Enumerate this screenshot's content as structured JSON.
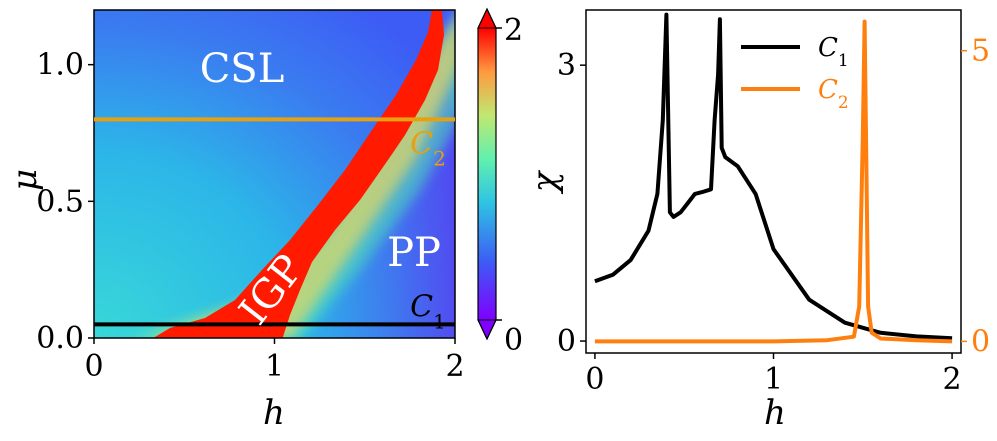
{
  "colors": {
    "c1": "#000000",
    "c2": "#ff7f0e",
    "c2_line_on_map": "#e6a010",
    "chi_c2_axis": "#ff7f0e"
  },
  "chart_data": [
    {
      "type": "heatmap",
      "title": "",
      "xlabel": "h",
      "ylabel": "μ",
      "xlim": [
        0,
        2
      ],
      "ylim": [
        0,
        1.2
      ],
      "xticks": [
        "0",
        "1",
        "2"
      ],
      "yticks": [
        "0.0",
        "0.5",
        "1.0"
      ],
      "colormap": "rainbow",
      "colorbar": {
        "min": 0,
        "max": 2,
        "ticks": [
          "0",
          "2"
        ],
        "extend": "both"
      },
      "regions": [
        {
          "label": "CSL",
          "h": 0.82,
          "mu": 1.0
        },
        {
          "label": "PP",
          "h": 1.8,
          "mu": 0.35
        },
        {
          "label": "IGP",
          "h": 1.0,
          "mu": 0.22,
          "rotation_deg": -52
        }
      ],
      "lines": [
        {
          "name": "C_1",
          "mu": 0.05,
          "h_range": [
            0,
            2
          ]
        },
        {
          "name": "C_2",
          "mu": 0.8,
          "h_range": [
            0,
            2
          ]
        }
      ],
      "boundary_ridge": [
        [
          0.33,
          0.0
        ],
        [
          0.6,
          0.1
        ],
        [
          0.9,
          0.3
        ],
        [
          1.2,
          0.5
        ],
        [
          1.45,
          0.7
        ],
        [
          1.7,
          0.9
        ],
        [
          1.95,
          1.2
        ]
      ]
    },
    {
      "type": "line",
      "title": "",
      "xlabel": "h",
      "ylabel": "χ",
      "xlim": [
        -0.05,
        2.05
      ],
      "xticks": [
        "0",
        "1",
        "2"
      ],
      "yticks_left": [
        "0",
        "3"
      ],
      "ylim_left": [
        0,
        3.6
      ],
      "yticks_right": [
        "0",
        "5"
      ],
      "ylim_right": [
        -0.2,
        5.7
      ],
      "legend": {
        "position": "top-right",
        "entries": [
          "C_1",
          "C_2"
        ]
      },
      "series": [
        {
          "name": "C_1",
          "axis": "left",
          "x": [
            0,
            0.1,
            0.2,
            0.3,
            0.35,
            0.38,
            0.4,
            0.42,
            0.44,
            0.48,
            0.52,
            0.56,
            0.6,
            0.65,
            0.67,
            0.69,
            0.7,
            0.71,
            0.73,
            0.8,
            0.9,
            1.0,
            1.2,
            1.4,
            1.6,
            1.8,
            2.0
          ],
          "values": [
            0.65,
            0.72,
            0.88,
            1.2,
            1.6,
            2.4,
            3.55,
            1.4,
            1.35,
            1.4,
            1.5,
            1.6,
            1.62,
            1.65,
            2.4,
            2.9,
            3.5,
            2.1,
            2.0,
            1.9,
            1.6,
            1.0,
            0.45,
            0.2,
            0.09,
            0.05,
            0.03
          ]
        },
        {
          "name": "C_2",
          "axis": "right",
          "x": [
            0,
            0.5,
            1.0,
            1.3,
            1.45,
            1.48,
            1.5,
            1.51,
            1.52,
            1.53,
            1.55,
            1.6,
            1.8,
            2.0
          ],
          "values": [
            0.0,
            0.0,
            0.0,
            0.02,
            0.08,
            0.6,
            3.5,
            5.5,
            3.0,
            0.6,
            0.15,
            0.05,
            0.02,
            0.0
          ]
        }
      ]
    }
  ]
}
